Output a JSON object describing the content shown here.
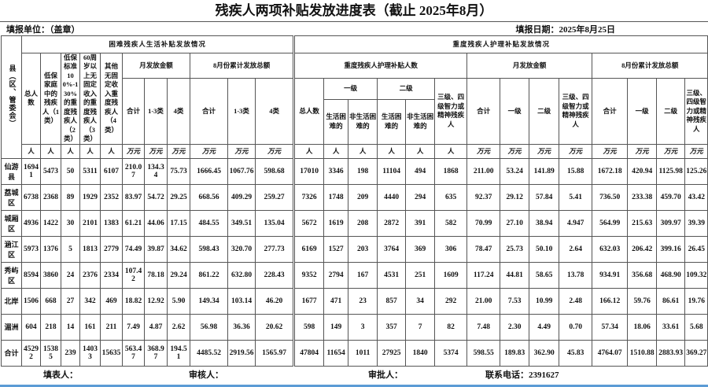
{
  "title": "残疾人两项补贴发放进度表（截止 2025年8月）",
  "meta": {
    "unit_label": "填报单位：（盖章）",
    "date_label": "填报日期：2025年8月25日"
  },
  "table": {
    "corner": "县（区、管委会）",
    "left": {
      "section": "困难残疾人生活补贴发放情况",
      "count_cols": [
        "总人数",
        "低保家庭中的残疾人（1类）",
        "低保标准100%-130%的重度残疾人（2类）",
        "60周岁以上无固定收入的重度残疾人（3类）",
        "其他无固定收入重度残疾人（4类）"
      ],
      "month_group": "月发放金额",
      "cum_group": "8月份累计发放总额",
      "sub_cols": [
        "合计",
        "1-3类",
        "4类"
      ]
    },
    "right": {
      "section": "重度残疾人护理补贴发放情况",
      "count_group": "重度残疾人护理补贴人数",
      "total_col": "总人数",
      "grade1": "一级",
      "grade2": "二级",
      "difficulty_cols": [
        "生活困难的",
        "非生活困难的",
        "生活困难的",
        "非生活困难的"
      ],
      "grade34": "三级、四级智力或精神残疾人",
      "month_group": "月发放金额",
      "cum_group": "8月份累计发放总额",
      "amount_cols": [
        "合计",
        "一级",
        "二级",
        "三级、四级智力或精神残疾人"
      ]
    },
    "units": [
      "人",
      "人",
      "人",
      "人",
      "人",
      "万元",
      "万元",
      "万元",
      "万元",
      "万元",
      "万元",
      "人",
      "人",
      "人",
      "人",
      "人",
      "人",
      "万元",
      "万元",
      "万元",
      "万元",
      "万元",
      "万元",
      "万元",
      "万元"
    ],
    "rows": [
      {
        "name": "仙游县",
        "cells": [
          "16941",
          "5473",
          "50",
          "5311",
          "6107",
          "210.07",
          "134.34",
          "75.73",
          "1666.45",
          "1067.76",
          "598.68",
          "17010",
          "3346",
          "198",
          "11104",
          "494",
          "1868",
          "211.00",
          "53.24",
          "141.89",
          "15.88",
          "1672.18",
          "420.94",
          "1125.98",
          "125.26"
        ]
      },
      {
        "name": "荔城区",
        "cells": [
          "6738",
          "2368",
          "89",
          "1929",
          "2352",
          "83.97",
          "54.72",
          "29.25",
          "668.56",
          "409.29",
          "259.27",
          "7326",
          "1748",
          "209",
          "4440",
          "294",
          "635",
          "92.37",
          "29.12",
          "57.84",
          "5.41",
          "736.50",
          "233.38",
          "459.70",
          "43.42"
        ]
      },
      {
        "name": "城厢区",
        "cells": [
          "4936",
          "1422",
          "30",
          "2101",
          "1383",
          "61.21",
          "44.06",
          "17.15",
          "484.55",
          "349.51",
          "135.04",
          "5672",
          "1619",
          "208",
          "2872",
          "391",
          "582",
          "70.99",
          "27.10",
          "38.94",
          "4.947",
          "564.99",
          "215.63",
          "309.97",
          "39.39"
        ]
      },
      {
        "name": "涵江区",
        "cells": [
          "5973",
          "1376",
          "5",
          "1813",
          "2779",
          "74.49",
          "39.87",
          "34.62",
          "598.43",
          "320.70",
          "277.73",
          "6169",
          "1527",
          "203",
          "3764",
          "369",
          "306",
          "78.47",
          "25.73",
          "50.10",
          "2.64",
          "632.03",
          "206.42",
          "399.16",
          "26.45"
        ]
      },
      {
        "name": "秀屿区",
        "cells": [
          "8594",
          "3860",
          "24",
          "2376",
          "2334",
          "107.42",
          "78.18",
          "29.24",
          "861.22",
          "632.80",
          "228.43",
          "9352",
          "2794",
          "167",
          "4531",
          "251",
          "1609",
          "117.24",
          "44.81",
          "58.65",
          "13.78",
          "934.91",
          "356.68",
          "468.90",
          "109.32"
        ]
      },
      {
        "name": "北岸",
        "cells": [
          "1506",
          "668",
          "27",
          "342",
          "469",
          "18.82",
          "12.92",
          "5.90",
          "149.34",
          "103.14",
          "46.20",
          "1677",
          "471",
          "23",
          "857",
          "34",
          "292",
          "21.00",
          "7.53",
          "10.99",
          "2.48",
          "166.12",
          "59.76",
          "86.61",
          "19.76"
        ]
      },
      {
        "name": "湄洲",
        "cells": [
          "604",
          "218",
          "14",
          "161",
          "211",
          "7.49",
          "4.87",
          "2.62",
          "56.98",
          "36.36",
          "20.62",
          "598",
          "149",
          "3",
          "357",
          "7",
          "82",
          "7.48",
          "2.30",
          "4.49",
          "0.70",
          "57.34",
          "18.06",
          "33.61",
          "5.68"
        ]
      },
      {
        "name": "合计",
        "cells": [
          "45292",
          "15385",
          "239",
          "14033",
          "15635",
          "563.47",
          "368.97",
          "194.51",
          "4485.52",
          "2919.56",
          "1565.97",
          "47804",
          "11654",
          "1011",
          "27925",
          "1840",
          "5374",
          "598.55",
          "189.83",
          "362.90",
          "45.83",
          "4764.07",
          "1510.88",
          "2883.93",
          "369.27"
        ]
      }
    ]
  },
  "footer": {
    "filler": "填表人：",
    "reviewer": "审核人：",
    "approver": "审批人：",
    "phone": "联系电话：2391627"
  }
}
